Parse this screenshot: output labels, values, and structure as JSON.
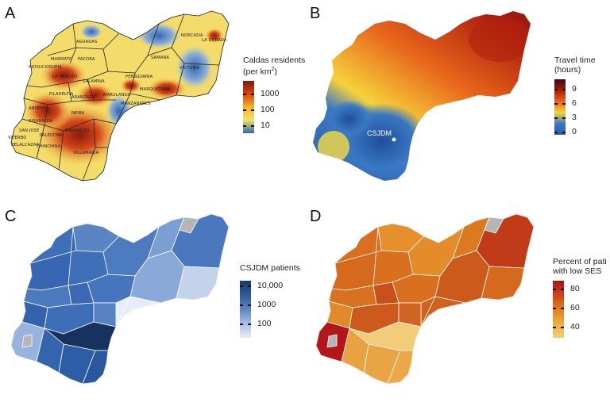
{
  "panels": [
    {
      "letter": "A",
      "legend": {
        "title_line1": "Caldas residents",
        "title_line2_prefix": "(per km",
        "title_sup": "2",
        "title_line2_suffix": ")",
        "ticks": [
          "1000",
          "100",
          "10"
        ],
        "colors": [
          "#7a1a0a",
          "#d64512",
          "#f5b32a",
          "#f3e16e",
          "#2f67b1"
        ]
      },
      "municipalities": [
        "AGUADAS",
        "NORCASIA",
        "LA DORADA",
        "PACORA",
        "SAMANA",
        "MARMATO",
        "RIOSUCIO",
        "SUPIA",
        "LA MERCED",
        "SALAMINA",
        "PENSILVANIA",
        "VICTORIA",
        "FILADELFIA",
        "ARANZAZU",
        "MARULANDA",
        "MARQUETALIA",
        "MANZANARES",
        "ANSERMA",
        "NEIRA",
        "RISARALDA",
        "SAN JOSE",
        "PALESTINA",
        "MANIZALES",
        "VITERBO",
        "BELALCAZAR",
        "CHINCHINA",
        "VILLAMARIA"
      ]
    },
    {
      "letter": "B",
      "legend": {
        "title_line1": "Travel time",
        "title_line2": "(hours)",
        "ticks": [
          "9",
          "6",
          "3",
          "0"
        ],
        "colors": [
          "#3b0a0a",
          "#a91b0d",
          "#e8651b",
          "#f6d23a",
          "#3a78c4",
          "#2a5aa8"
        ]
      },
      "marker_label": "CSJDM"
    },
    {
      "letter": "C",
      "legend": {
        "title_line1": "CSJDM patients",
        "ticks": [
          "10,000",
          "1000",
          "100"
        ],
        "colors": [
          "#1b3a66",
          "#2c5a9c",
          "#5b86c6",
          "#a8bfe3",
          "#e8eef8"
        ]
      }
    },
    {
      "letter": "D",
      "legend": {
        "title_line1": "Percent of pati",
        "title_line2": "with low SES",
        "ticks": [
          "80",
          "60",
          "40"
        ],
        "colors": [
          "#a01515",
          "#d0421a",
          "#e0801f",
          "#ecae40",
          "#f3cf7a"
        ]
      }
    }
  ]
}
